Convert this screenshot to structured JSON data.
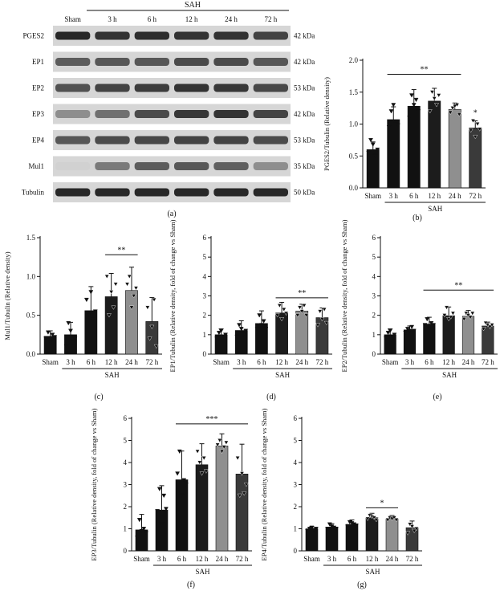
{
  "blot": {
    "sah_label": "SAH",
    "columns": [
      "Sham",
      "3 h",
      "6 h",
      "12 h",
      "24 h",
      "72 h"
    ],
    "rows": [
      {
        "name": "PGES2",
        "kda": "42 kDa",
        "intensity": [
          0.95,
          0.9,
          0.92,
          0.9,
          0.9,
          0.82
        ]
      },
      {
        "name": "EP1",
        "kda": "42 kDa",
        "intensity": [
          0.7,
          0.72,
          0.72,
          0.78,
          0.78,
          0.72
        ]
      },
      {
        "name": "EP2",
        "kda": "53 kDa",
        "intensity": [
          0.75,
          0.82,
          0.85,
          0.9,
          0.88,
          0.8
        ]
      },
      {
        "name": "EP3",
        "kda": "42 kDa",
        "intensity": [
          0.45,
          0.6,
          0.78,
          0.88,
          0.9,
          0.82
        ]
      },
      {
        "name": "EP4",
        "kda": "53 kDa",
        "intensity": [
          0.72,
          0.78,
          0.8,
          0.82,
          0.82,
          0.78
        ]
      },
      {
        "name": "Mul1",
        "kda": "35 kDa",
        "intensity": [
          0.12,
          0.55,
          0.7,
          0.72,
          0.68,
          0.45
        ]
      },
      {
        "name": "Tubulin",
        "kda": "50 kDa",
        "intensity": [
          0.95,
          0.95,
          0.95,
          0.95,
          0.95,
          0.95
        ]
      }
    ]
  },
  "panel_labels": [
    "(a)",
    "(b)",
    "(c)",
    "(d)",
    "(e)",
    "(f)",
    "(g)"
  ],
  "chart_data": [
    {
      "id": "b",
      "type": "bar",
      "categories": [
        "Sham",
        "3 h",
        "6 h",
        "12 h",
        "24 h",
        "72 h"
      ],
      "values": [
        0.6,
        1.07,
        1.28,
        1.36,
        1.23,
        0.94
      ],
      "errors": [
        0.12,
        0.2,
        0.26,
        0.2,
        0.1,
        0.11
      ],
      "points": [
        [
          0.55,
          0.75,
          0.68,
          0.5,
          0.6
        ],
        [
          0.95,
          1.2,
          1.3,
          1.0,
          0.98
        ],
        [
          1.1,
          1.45,
          1.3,
          1.38,
          1.2
        ],
        [
          1.2,
          1.5,
          1.4,
          1.3,
          1.45
        ],
        [
          1.18,
          1.25,
          1.28,
          1.3,
          1.15
        ],
        [
          0.9,
          1.05,
          0.8,
          1.0,
          0.92
        ]
      ],
      "ylabel": "PGES2/Tubulin (Relative density)",
      "xlabel": "SAH",
      "ylim": [
        0,
        2.0
      ],
      "yticks": [
        0.0,
        0.5,
        1.0,
        1.5,
        2.0
      ],
      "yticklabels": [
        "0.0",
        "0.5",
        "1.0",
        "1.5",
        "2.0"
      ],
      "significance": [
        {
          "label": "**",
          "from": "3 h",
          "to": "24 h",
          "y": 1.78
        },
        {
          "label": "*",
          "from": "72 h",
          "to": "72 h",
          "y": 1.14
        }
      ],
      "grid": false
    },
    {
      "id": "c",
      "type": "bar",
      "categories": [
        "Sham",
        "3 h",
        "6 h",
        "12 h",
        "24 h",
        "72 h"
      ],
      "values": [
        0.23,
        0.25,
        0.56,
        0.74,
        0.82,
        0.42
      ],
      "errors": [
        0.07,
        0.16,
        0.31,
        0.3,
        0.3,
        0.31
      ],
      "points": [
        [
          0.2,
          0.28,
          0.15,
          0.25,
          0.22
        ],
        [
          0.1,
          0.4,
          0.3,
          0.15,
          0.2
        ],
        [
          0.7,
          0.5,
          0.8,
          0.45,
          0.55
        ],
        [
          1.0,
          0.5,
          0.8,
          0.6,
          0.9
        ],
        [
          0.9,
          1.0,
          0.6,
          0.75,
          0.85
        ],
        [
          0.6,
          0.2,
          0.35,
          0.7,
          0.1
        ]
      ],
      "ylabel": "Mul1/Tubulin (Relative density)",
      "xlabel": "SAH",
      "ylim": [
        0,
        1.5
      ],
      "yticks": [
        0.0,
        0.5,
        1.0,
        1.5
      ],
      "yticklabels": [
        "0.0",
        "0.5",
        "1.0",
        "1.5"
      ],
      "significance": [
        {
          "label": "**",
          "from": "12 h",
          "to": "24 h",
          "y": 1.28
        }
      ],
      "grid": false
    },
    {
      "id": "d",
      "type": "bar",
      "categories": [
        "Sham",
        "3 h",
        "6 h",
        "12 h",
        "24 h",
        "72 h"
      ],
      "values": [
        1.0,
        1.22,
        1.58,
        2.12,
        2.22,
        1.88
      ],
      "errors": [
        0.3,
        0.5,
        0.65,
        0.55,
        0.35,
        0.5
      ],
      "points": [
        [
          0.8,
          1.1,
          1.2,
          0.9,
          1.0
        ],
        [
          0.9,
          1.5,
          1.3,
          1.0,
          1.2
        ],
        [
          1.3,
          2.0,
          1.5,
          1.7,
          1.3
        ],
        [
          2.0,
          2.5,
          1.8,
          2.3,
          2.1
        ],
        [
          2.0,
          2.4,
          2.2,
          2.5,
          2.0
        ],
        [
          1.5,
          2.2,
          1.8,
          2.3,
          1.6
        ]
      ],
      "ylabel": "EP1/Tubulin (Relative density, fold of change vs Sham)",
      "xlabel": "SAH",
      "ylim": [
        0,
        6
      ],
      "yticks": [
        0,
        1,
        2,
        3,
        4,
        5,
        6
      ],
      "yticklabels": [
        "0",
        "1",
        "2",
        "3",
        "4",
        "5",
        "6"
      ],
      "significance": [
        {
          "label": "**",
          "from": "12 h",
          "to": "72 h",
          "y": 2.9
        }
      ],
      "grid": false
    },
    {
      "id": "e",
      "type": "bar",
      "categories": [
        "Sham",
        "3 h",
        "6 h",
        "12 h",
        "24 h",
        "72 h"
      ],
      "values": [
        1.0,
        1.25,
        1.55,
        1.98,
        1.95,
        1.45
      ],
      "errors": [
        0.3,
        0.2,
        0.35,
        0.45,
        0.3,
        0.2
      ],
      "points": [
        [
          0.8,
          1.1,
          1.2,
          0.9,
          1.0
        ],
        [
          1.1,
          1.3,
          1.2,
          1.4,
          1.2
        ],
        [
          1.5,
          1.8,
          1.3,
          1.6,
          1.5
        ],
        [
          2.0,
          2.4,
          1.8,
          1.9,
          2.1
        ],
        [
          1.8,
          2.1,
          2.0,
          1.9,
          2.1
        ],
        [
          1.3,
          1.6,
          1.5,
          1.4,
          1.5
        ]
      ],
      "ylabel": "EP2/Tubulin (Relative density, fold of change vs Sham)",
      "xlabel": "SAH",
      "ylim": [
        0,
        6
      ],
      "yticks": [
        0,
        1,
        2,
        3,
        4,
        5,
        6
      ],
      "yticklabels": [
        "0",
        "1",
        "2",
        "3",
        "4",
        "5",
        "6"
      ],
      "significance": [
        {
          "label": "**",
          "from": "6 h",
          "to": "72 h",
          "y": 3.3
        }
      ],
      "grid": false
    },
    {
      "id": "f",
      "type": "bar",
      "categories": [
        "Sham",
        "3 h",
        "6 h",
        "12 h",
        "24 h",
        "72 h"
      ],
      "values": [
        0.95,
        1.85,
        3.22,
        3.9,
        4.75,
        3.48
      ],
      "errors": [
        0.7,
        1.1,
        1.3,
        0.95,
        0.55,
        1.35
      ],
      "points": [
        [
          0.6,
          1.4,
          0.9,
          1.0,
          0.8
        ],
        [
          1.8,
          2.8,
          1.2,
          2.5,
          1.9
        ],
        [
          3.5,
          4.5,
          2.5,
          3.2,
          3.0
        ],
        [
          4.5,
          4.0,
          3.5,
          4.2,
          3.6
        ],
        [
          4.8,
          5.0,
          4.5,
          4.7,
          4.9
        ],
        [
          4.2,
          2.5,
          3.5,
          2.6,
          3.0
        ]
      ],
      "ylabel": "EP3/Tubulin (Relative density, fold of change vs Sham)",
      "xlabel": "SAH",
      "ylim": [
        0,
        6
      ],
      "yticks": [
        0,
        1,
        2,
        3,
        4,
        5,
        6
      ],
      "yticklabels": [
        "0",
        "1",
        "2",
        "3",
        "4",
        "5",
        "6"
      ],
      "significance": [
        {
          "label": "***",
          "from": "6 h",
          "to": "72 h",
          "y": 5.75
        }
      ],
      "grid": false
    },
    {
      "id": "g",
      "type": "bar",
      "categories": [
        "Sham",
        "3 h",
        "6 h",
        "12 h",
        "24 h",
        "72 h"
      ],
      "values": [
        1.0,
        1.08,
        1.2,
        1.5,
        1.45,
        1.05
      ],
      "errors": [
        0.1,
        0.15,
        0.2,
        0.2,
        0.15,
        0.3
      ],
      "points": [
        [
          0.9,
          1.0,
          1.05,
          0.95,
          1.0
        ],
        [
          1.0,
          1.2,
          1.1,
          1.05,
          1.0
        ],
        [
          1.1,
          1.3,
          1.25,
          1.2,
          1.15
        ],
        [
          1.45,
          1.6,
          1.55,
          1.5,
          1.4
        ],
        [
          1.4,
          1.5,
          1.45,
          1.5,
          1.4
        ],
        [
          0.8,
          1.2,
          1.1,
          0.9,
          1.0
        ]
      ],
      "ylabel": "EP4/Tubulin (Relative density, fold of change vs Sham)",
      "xlabel": "SAH",
      "ylim": [
        0,
        6
      ],
      "yticks": [
        0,
        1,
        2,
        3,
        4,
        5,
        6
      ],
      "yticklabels": [
        "0",
        "1",
        "2",
        "3",
        "4",
        "5",
        "6"
      ],
      "significance": [
        {
          "label": "*",
          "from": "12 h",
          "to": "24 h",
          "y": 1.95
        }
      ],
      "grid": false
    }
  ],
  "colors": {
    "bars": [
      "#111111",
      "#111111",
      "#111111",
      "#1c1c1c",
      "#8f8f8f",
      "#3a3a3a"
    ],
    "ink": "#111111",
    "blot_bg": "#d6d6d6"
  }
}
